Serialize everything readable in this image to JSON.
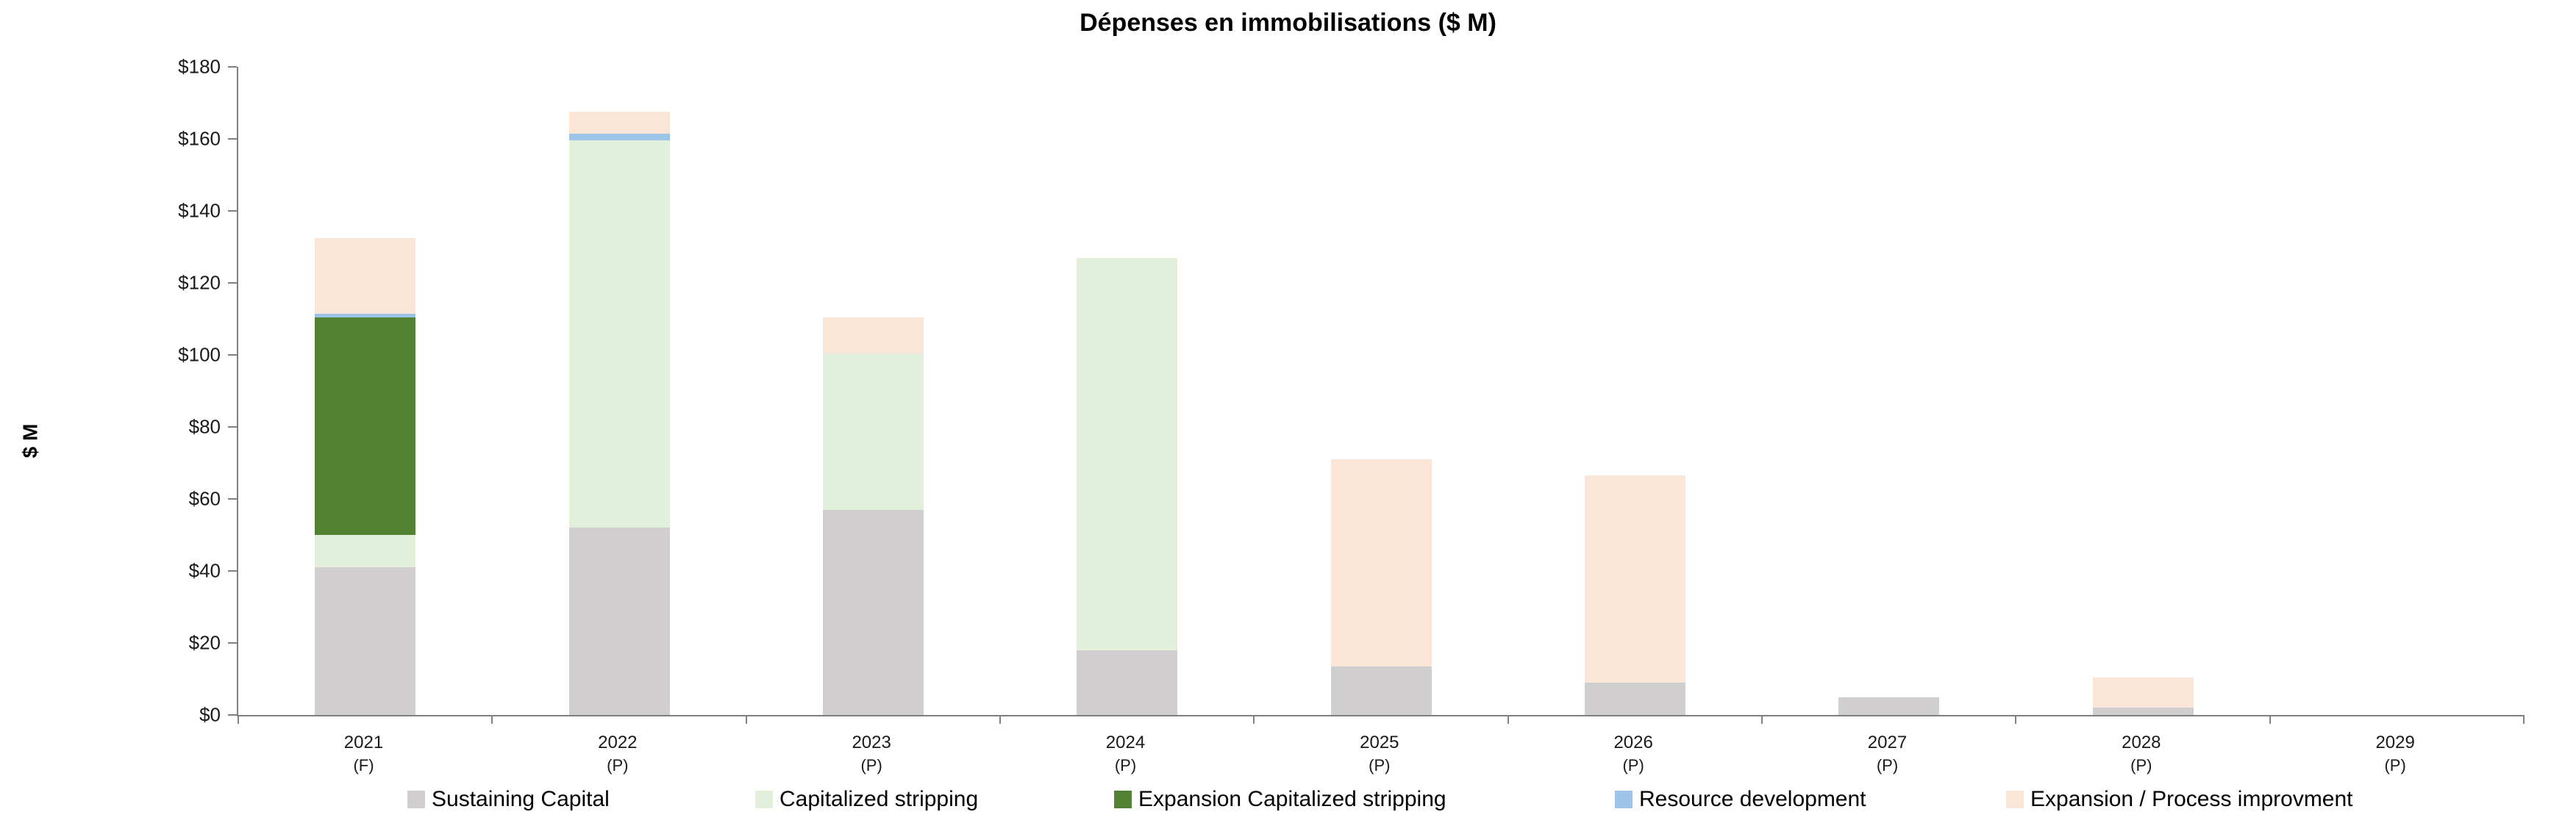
{
  "title": "Dépenses en immobilisations ($ M)",
  "y_axis_title": "$ M",
  "chart_data": {
    "type": "bar",
    "stacked": true,
    "title": "Dépenses en immobilisations ($ M)",
    "xlabel": "",
    "ylabel": "$ M",
    "ylim": [
      0,
      180
    ],
    "ytick_step": 20,
    "ytick_labels": [
      "$0",
      "$20",
      "$40",
      "$60",
      "$80",
      "$100",
      "$120",
      "$140",
      "$160",
      "$180"
    ],
    "grid": false,
    "legend_position": "bottom",
    "categories": [
      "2021",
      "2022",
      "2023",
      "2024",
      "2025",
      "2026",
      "2027",
      "2028",
      "2029"
    ],
    "category_suffixes": [
      "(F)",
      "(P)",
      "(P)",
      "(P)",
      "(P)",
      "(P)",
      "(P)",
      "(P)",
      "(P)"
    ],
    "series": [
      {
        "name": "Sustaining Capital",
        "color": "#d0cece",
        "values": [
          41,
          52,
          57,
          18,
          13.5,
          9,
          5,
          2,
          0
        ]
      },
      {
        "name": "Capitalized stripping",
        "color": "#e2efda",
        "values": [
          9,
          107.5,
          43.5,
          109,
          0,
          0,
          0,
          0,
          0
        ]
      },
      {
        "name": "Expansion Capitalized stripping",
        "color": "#548235",
        "values": [
          60.5,
          0,
          0,
          0,
          0,
          0,
          0,
          0,
          0
        ]
      },
      {
        "name": "Resource development",
        "color": "#9dc3e6",
        "values": [
          1,
          2,
          0,
          0,
          0,
          0,
          0,
          0,
          0
        ]
      },
      {
        "name": "Expansion / Process improvment",
        "color": "#fbe5d6",
        "values": [
          21,
          6,
          10,
          0,
          57.5,
          57.5,
          0,
          8.5,
          0
        ]
      }
    ],
    "totals": [
      132.5,
      167.5,
      110.5,
      127,
      71,
      66.5,
      5,
      10.5,
      0
    ],
    "axis_color": "#808080"
  },
  "layout_hints": {
    "legend_item_lefts": [
      554,
      1027,
      1515,
      2196,
      2728
    ]
  }
}
